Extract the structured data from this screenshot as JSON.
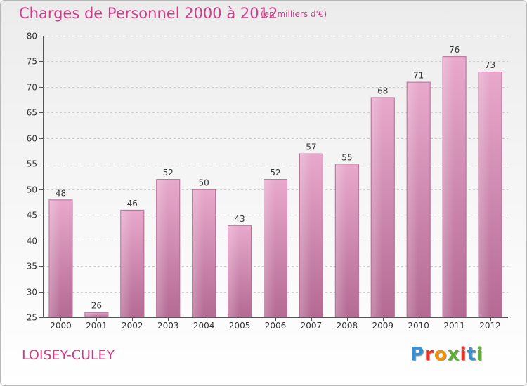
{
  "header": {
    "title": "Charges de Personnel 2000 à 2012",
    "subtitle": "(en milliers d'€)"
  },
  "footer": {
    "commune": "LOISEY-CULEY",
    "logo_letters": [
      "P",
      "r",
      "o",
      "x",
      "i",
      "t",
      "i"
    ],
    "logo_colors": [
      "#3a8fd0",
      "#e5332a",
      "#f39200",
      "#5bae33",
      "#e5332a",
      "#3a8fd0",
      "#5bae33"
    ]
  },
  "chart_data": {
    "type": "bar",
    "title": "Charges de Personnel 2000 à 2012",
    "subtitle": "(en milliers d'€)",
    "categories": [
      "2000",
      "2001",
      "2002",
      "2003",
      "2004",
      "2005",
      "2006",
      "2007",
      "2008",
      "2009",
      "2010",
      "2011",
      "2012"
    ],
    "values": [
      48,
      26,
      46,
      52,
      50,
      43,
      52,
      57,
      55,
      68,
      71,
      76,
      73
    ],
    "ylim": [
      25,
      80
    ],
    "yticks": [
      25,
      30,
      35,
      40,
      45,
      50,
      55,
      60,
      65,
      70,
      75,
      80
    ],
    "grid": true,
    "bar_color": "#c4709d",
    "bar_color_light": "#e8a9cc",
    "legend": "none"
  }
}
